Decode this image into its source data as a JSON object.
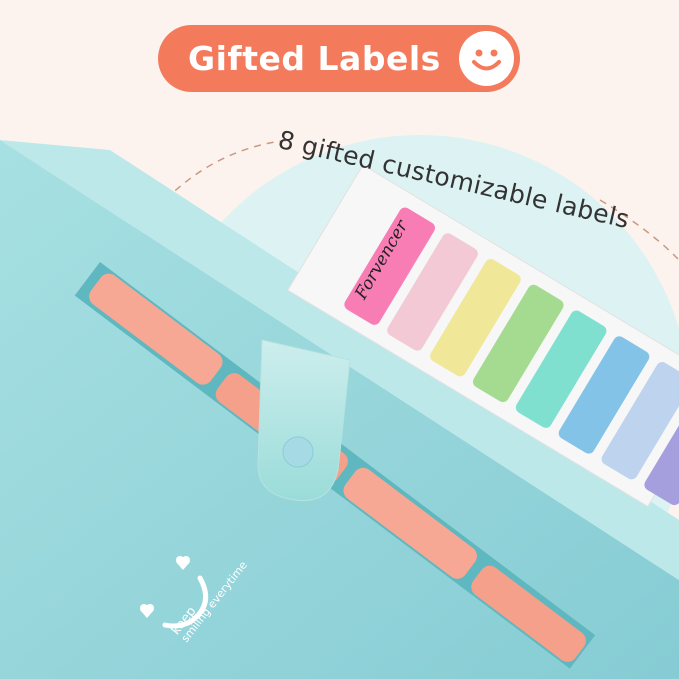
{
  "header": {
    "title": "Gifted Labels",
    "icon": "smiley-face-icon",
    "accent": "#f47a5c"
  },
  "subtitle": "8 gifted customizable labels",
  "sheet": {
    "brand": "Forvencer",
    "label_colors": [
      "#f77db4",
      "#f2c9d4",
      "#f0e898",
      "#a4db91",
      "#7fe0cf",
      "#84c3e8",
      "#bdd3ee",
      "#a69fdd"
    ]
  },
  "folder": {
    "motto_line1": "keep",
    "motto_line2": "smiling everytime",
    "color": "#8fd3d8",
    "tab_color": "#f6a894"
  }
}
